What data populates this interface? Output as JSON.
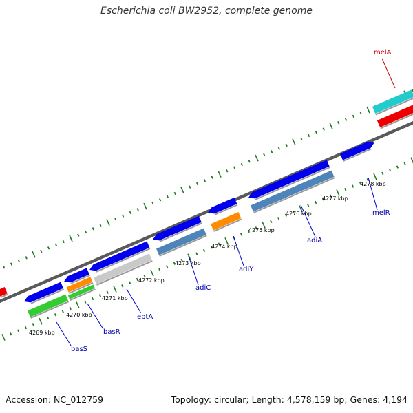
{
  "title": "Escherichia coli BW2952, complete genome",
  "footer": {
    "accession": "Accession: NC_012759",
    "topology": "Topology: circular; Length: 4,578,159 bp; Genes: 4,194"
  },
  "colors": {
    "backbone": "#6e6e6e",
    "tick": "#1e7d1e",
    "label_text": "#000000",
    "gene_label": "#0000aa",
    "callout_line": "#0000cc",
    "gene_blue": "#0000ee",
    "gene_steel": "#4f84b8",
    "gene_grey": "#c9c9c9",
    "gene_orange": "#ff8c00",
    "gene_green": "#33cc33",
    "gene_cyan": "#22cccc",
    "gene_red": "#ee0000",
    "mel_label": "#cc0000"
  },
  "scale_labels": [
    "4269 kbp",
    "4270 kbp",
    "4271 kbp",
    "4272 kbp",
    "4273 kbp",
    "4274 kbp",
    "4275 kbp",
    "4276 kbp",
    "4277 kbp",
    "4278 kbp"
  ],
  "gene_labels": [
    "basS",
    "basR",
    "eptA",
    "adiC",
    "adiY",
    "adiA",
    "melR",
    "melA"
  ]
}
